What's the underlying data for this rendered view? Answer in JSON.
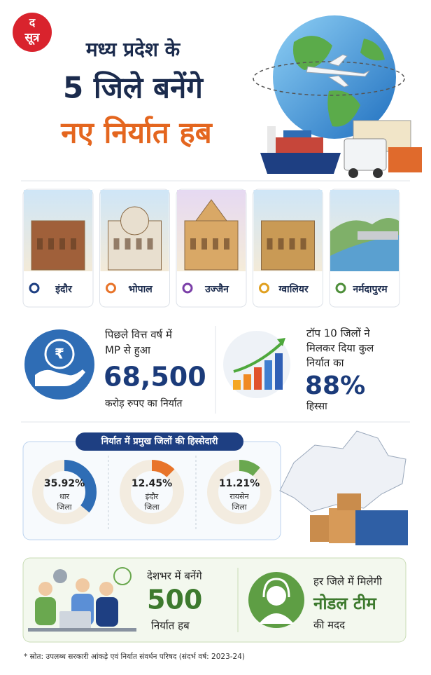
{
  "logo": {
    "top": "द",
    "bottom": "सूत्र"
  },
  "header": {
    "title": [
      "मध्य प्रदेश के",
      "5 जिले बनेंगे",
      "नए निर्यात हब"
    ]
  },
  "cities": [
    "इंदौर",
    "भोपाल",
    "उज्जैन",
    "ग्वालियर",
    "नर्मदापुरम"
  ],
  "stat_export": {
    "icon": "₹",
    "lines": [
      "पिछले वित्त वर्ष में",
      "MP से हुआ"
    ],
    "amount": "68,500",
    "unit": "करोड़ रुपए का निर्यात"
  },
  "stat_share": {
    "lines": [
      "टॉप 10 जिलों ने",
      "मिलकर दिया कुल",
      "निर्यात का"
    ],
    "amount": "88%",
    "unit": "हिस्सा"
  },
  "shares": {
    "title": "निर्यात में प्रमुख जिलों की हिस्सेदारी",
    "items": [
      {
        "value": 35.92,
        "label": "35.92%",
        "district": "धार",
        "suffix": "जिला",
        "color": "#2f6db5"
      },
      {
        "value": 12.45,
        "label": "12.45%",
        "district": "इंदौर",
        "suffix": "जिला",
        "color": "#e8742a"
      },
      {
        "value": 11.21,
        "label": "11.21%",
        "district": "रायसेन",
        "suffix": "जिला",
        "color": "#6aa84f"
      }
    ]
  },
  "hubs": {
    "lines": [
      "देशभर में बनेंगे"
    ],
    "amount": "500",
    "unit": "निर्यात हब"
  },
  "nodal": {
    "lines": [
      "हर जिले में मिलेगी"
    ],
    "amount": "नोडल टीम",
    "unit": "की मदद"
  },
  "source": "* स्रोत: उपलब्ध सरकारी आंकड़े एवं निर्यात संवर्धन परिषद (संदर्भ वर्ष: 2023-24)"
}
